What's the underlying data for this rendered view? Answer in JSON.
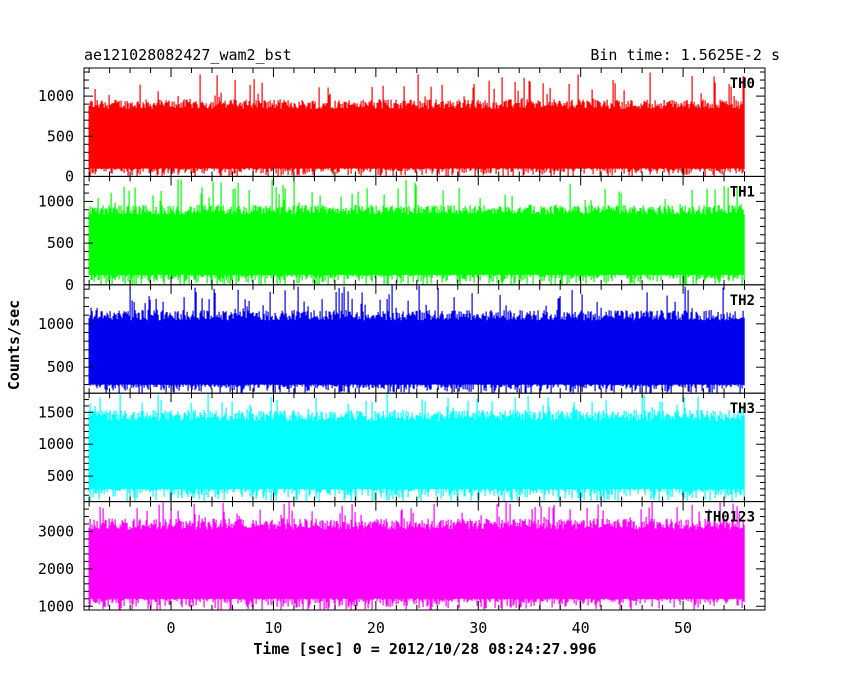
{
  "chart_data": {
    "type": "line",
    "title_left": "ae121028082427_wam2_bst",
    "title_right": "Bin time: 1.5625E-2 s",
    "xlabel": "Time [sec] 0 = 2012/10/28 08:24:27.996",
    "ylabel": "Counts/sec",
    "xlim": [
      -8.5,
      58
    ],
    "x_range_data": [
      -8.0,
      56.0
    ],
    "xticks": [
      0,
      10,
      20,
      30,
      40,
      50
    ],
    "grid": false,
    "panels": [
      {
        "name": "TH0",
        "color": "#ff0000",
        "ylim": [
          0,
          1350
        ],
        "yticks": [
          0,
          500,
          1000
        ],
        "typical_range": [
          100,
          900
        ],
        "peak_max": 1300
      },
      {
        "name": "TH1",
        "color": "#00ff00",
        "ylim": [
          0,
          1300
        ],
        "yticks": [
          0,
          500,
          1000
        ],
        "typical_range": [
          120,
          900
        ],
        "peak_max": 1280
      },
      {
        "name": "TH2",
        "color": "#0000ee",
        "ylim": [
          200,
          1450
        ],
        "yticks": [
          500,
          1000
        ],
        "typical_range": [
          300,
          1100
        ],
        "peak_max": 1450
      },
      {
        "name": "TH3",
        "color": "#00ffff",
        "ylim": [
          100,
          1800
        ],
        "yticks": [
          500,
          1000,
          1500
        ],
        "typical_range": [
          300,
          1450
        ],
        "peak_max": 1800
      },
      {
        "name": "TH0123",
        "color": "#ff00ff",
        "ylim": [
          900,
          3800
        ],
        "yticks": [
          1000,
          2000,
          3000
        ],
        "typical_range": [
          1200,
          3200
        ],
        "peak_max": 3800
      }
    ]
  }
}
